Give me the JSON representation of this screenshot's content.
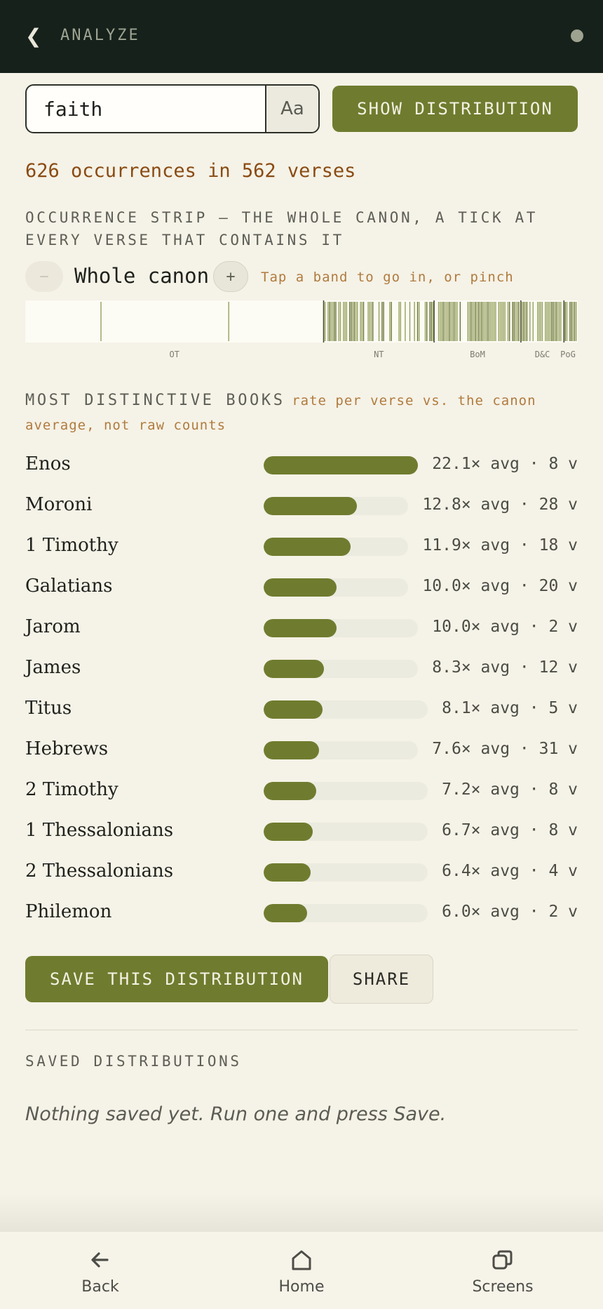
{
  "header": {
    "back_icon": "chevron-left-icon",
    "title": "ANALYZE"
  },
  "search": {
    "value": "faith",
    "case_toggle_label": "Aa",
    "show_button_label": "SHOW DISTRIBUTION"
  },
  "summary": "626 occurrences in 562 verses",
  "strip": {
    "heading": "OCCURRENCE STRIP — THE WHOLE CANON, A TICK AT EVERY VERSE THAT CONTAINS IT",
    "zoom_out_label": "−",
    "zoom_label": "Whole canon",
    "zoom_in_label": "+",
    "hint": "Tap a band to go in, or pinch",
    "bands": [
      {
        "label": "OT",
        "start": 0.0,
        "end": 0.54
      },
      {
        "label": "NT",
        "start": 0.54,
        "end": 0.74
      },
      {
        "label": "BoM",
        "start": 0.74,
        "end": 0.897
      },
      {
        "label": "D&C",
        "start": 0.897,
        "end": 0.975
      },
      {
        "label": "PoG",
        "start": 0.975,
        "end": 1.0
      }
    ]
  },
  "books": {
    "heading": "MOST DISTINCTIVE BOOKS",
    "note": "rate per verse vs. the canon average, not raw counts",
    "items": [
      {
        "name": "Enos",
        "ratio": 22.1,
        "stat": "22.1× avg · 8 v"
      },
      {
        "name": "Moroni",
        "ratio": 12.8,
        "stat": "12.8× avg · 28 v"
      },
      {
        "name": "1 Timothy",
        "ratio": 11.9,
        "stat": "11.9× avg · 18 v"
      },
      {
        "name": "Galatians",
        "ratio": 10.0,
        "stat": "10.0× avg · 20 v"
      },
      {
        "name": "Jarom",
        "ratio": 10.0,
        "stat": "10.0× avg · 2 v"
      },
      {
        "name": "James",
        "ratio": 8.3,
        "stat": "8.3× avg · 12 v"
      },
      {
        "name": "Titus",
        "ratio": 8.1,
        "stat": "8.1× avg · 5 v"
      },
      {
        "name": "Hebrews",
        "ratio": 7.6,
        "stat": "7.6× avg · 31 v"
      },
      {
        "name": "2 Timothy",
        "ratio": 7.2,
        "stat": "7.2× avg · 8 v"
      },
      {
        "name": "1 Thessalonians",
        "ratio": 6.7,
        "stat": "6.7× avg · 8 v"
      },
      {
        "name": "2 Thessalonians",
        "ratio": 6.4,
        "stat": "6.4× avg · 4 v"
      },
      {
        "name": "Philemon",
        "ratio": 6.0,
        "stat": "6.0× avg · 2 v"
      }
    ]
  },
  "actions": {
    "save_label": "SAVE THIS DISTRIBUTION",
    "share_label": "SHARE"
  },
  "saved": {
    "heading": "SAVED DISTRIBUTIONS",
    "empty_text": "Nothing saved yet. Run one and press Save."
  },
  "nav": {
    "back_label": "Back",
    "home_label": "Home",
    "screens_label": "Screens"
  },
  "colors": {
    "accent": "#6f7c2f",
    "background": "#f5f2e7",
    "topbar": "#16211b",
    "orange": "#8a4b12"
  }
}
